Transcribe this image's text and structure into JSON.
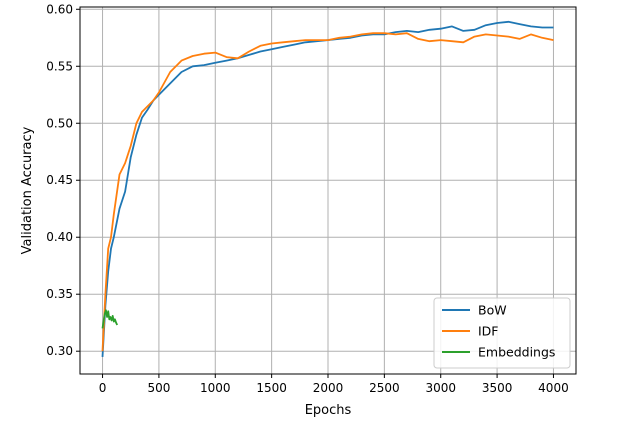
{
  "chart_data": {
    "type": "line",
    "title": "",
    "xlabel": "Epochs",
    "ylabel": "Validation Accuracy",
    "xlim": [
      -200,
      4200
    ],
    "ylim": [
      0.28,
      0.602
    ],
    "xticks": [
      0,
      500,
      1000,
      1500,
      2000,
      2500,
      3000,
      3500,
      4000
    ],
    "xtick_labels": [
      "0",
      "500",
      "1000",
      "1500",
      "2000",
      "2500",
      "3000",
      "3500",
      "4000"
    ],
    "yticks": [
      0.3,
      0.35,
      0.4,
      0.45,
      0.5,
      0.55,
      0.6
    ],
    "ytick_labels": [
      "0.30",
      "0.35",
      "0.40",
      "0.45",
      "0.50",
      "0.55",
      "0.60"
    ],
    "grid": true,
    "legend_position": "lower-right",
    "series": [
      {
        "name": "BoW",
        "color": "#1f77b4",
        "x": [
          0,
          25,
          50,
          75,
          100,
          150,
          200,
          250,
          300,
          350,
          400,
          450,
          500,
          600,
          700,
          800,
          900,
          1000,
          1100,
          1200,
          1300,
          1400,
          1500,
          1600,
          1700,
          1800,
          1900,
          2000,
          2100,
          2200,
          2300,
          2400,
          2500,
          2600,
          2700,
          2800,
          2900,
          3000,
          3100,
          3200,
          3300,
          3400,
          3500,
          3600,
          3700,
          3800,
          3900,
          4000
        ],
        "y": [
          0.295,
          0.34,
          0.37,
          0.39,
          0.4,
          0.425,
          0.44,
          0.47,
          0.49,
          0.505,
          0.512,
          0.52,
          0.525,
          0.535,
          0.545,
          0.55,
          0.551,
          0.553,
          0.555,
          0.557,
          0.56,
          0.563,
          0.565,
          0.567,
          0.569,
          0.571,
          0.572,
          0.573,
          0.574,
          0.575,
          0.577,
          0.578,
          0.578,
          0.58,
          0.581,
          0.58,
          0.582,
          0.583,
          0.585,
          0.581,
          0.582,
          0.586,
          0.588,
          0.589,
          0.587,
          0.585,
          0.584,
          0.584
        ]
      },
      {
        "name": "IDF",
        "color": "#ff7f0e",
        "x": [
          0,
          25,
          50,
          75,
          100,
          150,
          200,
          250,
          300,
          350,
          400,
          450,
          500,
          600,
          700,
          800,
          900,
          1000,
          1100,
          1200,
          1300,
          1400,
          1500,
          1600,
          1700,
          1800,
          1900,
          2000,
          2100,
          2200,
          2300,
          2400,
          2500,
          2600,
          2700,
          2800,
          2900,
          3000,
          3100,
          3200,
          3300,
          3400,
          3500,
          3600,
          3700,
          3800,
          3900,
          4000
        ],
        "y": [
          0.3,
          0.35,
          0.39,
          0.4,
          0.42,
          0.455,
          0.465,
          0.48,
          0.5,
          0.51,
          0.515,
          0.52,
          0.527,
          0.545,
          0.555,
          0.559,
          0.561,
          0.562,
          0.558,
          0.557,
          0.563,
          0.568,
          0.57,
          0.571,
          0.572,
          0.573,
          0.573,
          0.573,
          0.575,
          0.576,
          0.578,
          0.579,
          0.579,
          0.578,
          0.579,
          0.574,
          0.572,
          0.573,
          0.572,
          0.571,
          0.576,
          0.578,
          0.577,
          0.576,
          0.574,
          0.578,
          0.575,
          0.573
        ]
      },
      {
        "name": "Embeddings",
        "color": "#2ca02c",
        "x": [
          0,
          10,
          20,
          30,
          40,
          50,
          60,
          70,
          80,
          90,
          100,
          110,
          120,
          130
        ],
        "y": [
          0.32,
          0.327,
          0.333,
          0.336,
          0.33,
          0.335,
          0.328,
          0.33,
          0.327,
          0.331,
          0.326,
          0.328,
          0.325,
          0.323
        ]
      }
    ]
  }
}
